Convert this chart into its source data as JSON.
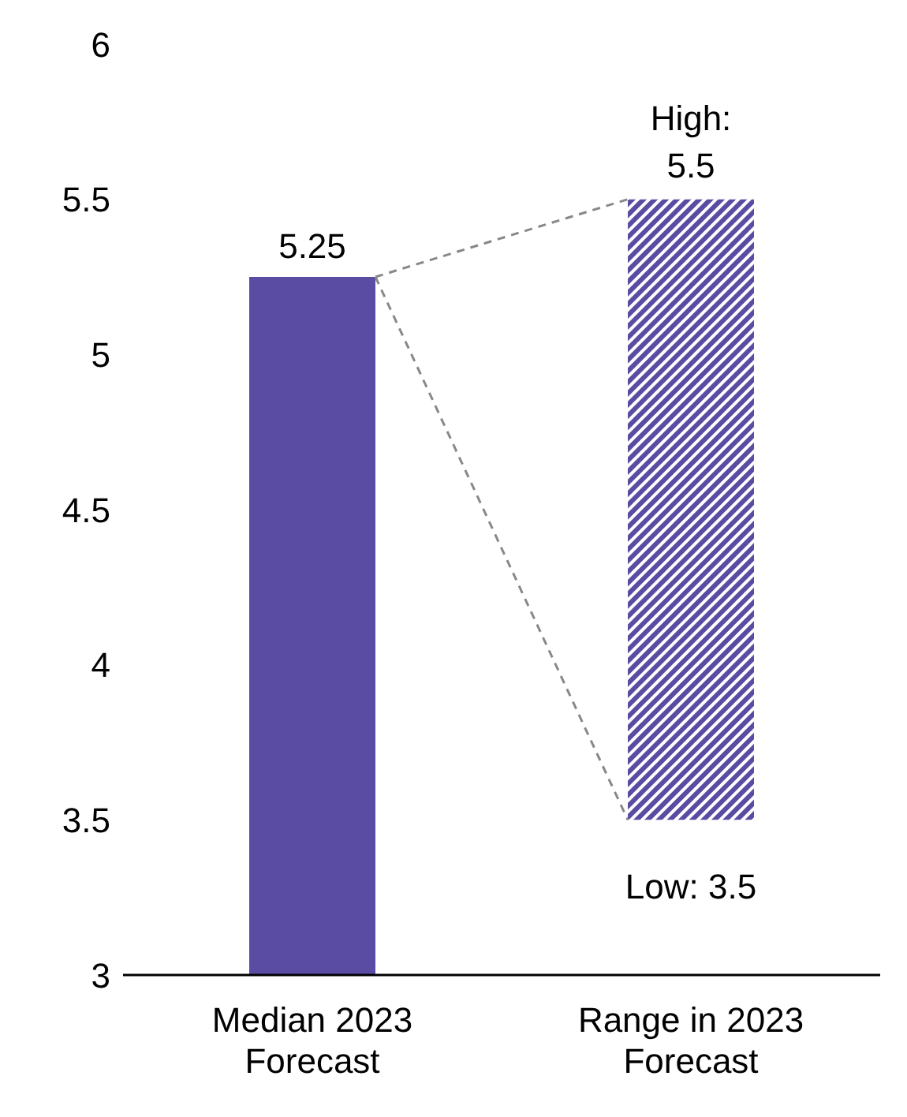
{
  "chart_data": {
    "type": "bar",
    "categories": [
      "Median 2023 Forecast",
      "Range in 2023 Forecast"
    ],
    "values": [
      5.25,
      2
    ],
    "base": [
      null,
      3.5
    ],
    "colors": [
      "#5a4ba3",
      "#5a4ba3"
    ],
    "value_labels": [
      "5.25",
      null
    ],
    "ylim": [
      3,
      6
    ],
    "yticks": [
      3,
      3.5,
      4,
      4.5,
      5,
      5.5,
      6
    ],
    "grid": false,
    "annotations": [
      {
        "text": "High: 5.5",
        "x": "Range in 2023 Forecast",
        "y": 5.5
      },
      {
        "text": "Low: 3.5",
        "x": "Range in 2023 Forecast",
        "y": 3.5
      }
    ]
  }
}
